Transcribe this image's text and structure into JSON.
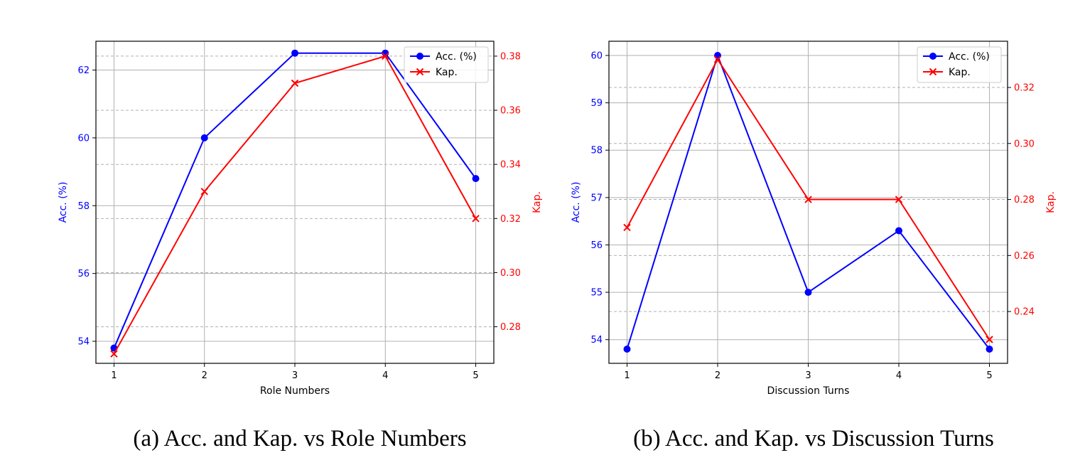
{
  "chart_data": [
    {
      "type": "line",
      "caption": "(a) Acc. and Kap. vs Role Numbers",
      "xlabel": "Role Numbers",
      "ylabel_left": "Acc. (%)",
      "ylabel_right": "Kap.",
      "x": [
        1,
        2,
        3,
        4,
        5
      ],
      "ylim_left": [
        53.35,
        62.85
      ],
      "ylim_right": [
        0.2665,
        0.3855
      ],
      "yticks_left": [
        54,
        56,
        58,
        60,
        62
      ],
      "yticks_right": [
        0.28,
        0.3,
        0.32,
        0.34,
        0.36,
        0.38
      ],
      "grid": true,
      "legend_position": "top-right",
      "series": [
        {
          "name": "Acc. (%)",
          "axis": "left",
          "color": "#0000ff",
          "marker": "circle",
          "values": [
            53.8,
            60.0,
            62.5,
            62.5,
            58.8
          ]
        },
        {
          "name": "Kap.",
          "axis": "right",
          "color": "#ff0000",
          "marker": "x",
          "values": [
            0.27,
            0.33,
            0.37,
            0.38,
            0.32
          ]
        }
      ]
    },
    {
      "type": "line",
      "caption": "(b) Acc. and Kap. vs Discussion Turns",
      "xlabel": "Discussion Turns",
      "ylabel_left": "Acc. (%)",
      "ylabel_right": "Kap.",
      "x": [
        1,
        2,
        3,
        4,
        5
      ],
      "ylim_left": [
        53.5,
        60.3
      ],
      "ylim_right": [
        0.2215,
        0.3365
      ],
      "yticks_left": [
        54,
        55,
        56,
        57,
        58,
        59,
        60
      ],
      "yticks_right": [
        0.24,
        0.26,
        0.28,
        0.3,
        0.32
      ],
      "grid": true,
      "legend_position": "top-right",
      "series": [
        {
          "name": "Acc. (%)",
          "axis": "left",
          "color": "#0000ff",
          "marker": "circle",
          "values": [
            53.8,
            60.0,
            55.0,
            56.3,
            53.8
          ]
        },
        {
          "name": "Kap.",
          "axis": "right",
          "color": "#ff0000",
          "marker": "x",
          "values": [
            0.27,
            0.33,
            0.28,
            0.28,
            0.23
          ]
        }
      ]
    }
  ]
}
